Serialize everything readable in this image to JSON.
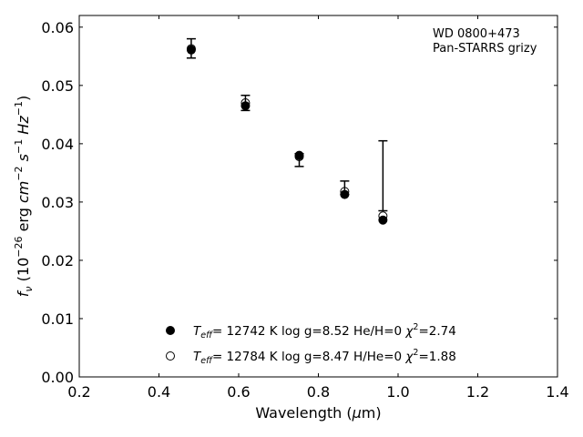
{
  "chart_data": {
    "type": "scatter",
    "title": "",
    "xlabel": "Wavelength (μm)",
    "ylabel": "f_ν (10^-26 erg cm^-2 s^-1 Hz^-1)",
    "xlim": [
      0.2,
      1.4
    ],
    "ylim": [
      0.0,
      0.062
    ],
    "x_ticks": [
      "0.2",
      "0.4",
      "0.6",
      "0.8",
      "1.0",
      "1.2",
      "1.4"
    ],
    "y_ticks": [
      "0.00",
      "0.01",
      "0.02",
      "0.03",
      "0.04",
      "0.05",
      "0.06"
    ],
    "grid": false,
    "annotation": [
      "WD 0800+473",
      "Pan-STARRS grizy"
    ],
    "observed": [
      {
        "x": 0.481,
        "y": 0.0563,
        "err_low": 0.0547,
        "err_high": 0.058
      },
      {
        "x": 0.617,
        "y": 0.047,
        "err_low": 0.0457,
        "err_high": 0.0483
      },
      {
        "x": 0.752,
        "y": 0.0375,
        "err_low": 0.0361,
        "err_high": 0.0383
      },
      {
        "x": 0.866,
        "y": 0.0322,
        "err_low": 0.0313,
        "err_high": 0.0336
      },
      {
        "x": 0.962,
        "y": 0.0277,
        "err_low": 0.0285,
        "err_high": 0.0405
      }
    ],
    "series": [
      {
        "marker": "filled",
        "x": [
          0.481,
          0.617,
          0.752,
          0.866,
          0.962
        ],
        "y": [
          0.0561,
          0.0465,
          0.038,
          0.0313,
          0.0269
        ]
      },
      {
        "marker": "open",
        "x": [
          0.481,
          0.617,
          0.752,
          0.866,
          0.962
        ],
        "y": [
          0.0563,
          0.047,
          0.0378,
          0.0318,
          0.0276
        ]
      }
    ],
    "legend": [
      {
        "marker": "filled",
        "teff": "= 12742 K",
        "params": "log g=8.52  He/H=0",
        "chi2": "=2.74"
      },
      {
        "marker": "open",
        "teff": "= 12784 K",
        "params": "log g=8.47  H/He=0",
        "chi2": "=1.88"
      }
    ],
    "legend_position": "lower-center",
    "colors": {
      "marker": "#000000",
      "axes": "#000000",
      "background": "#ffffff"
    }
  }
}
